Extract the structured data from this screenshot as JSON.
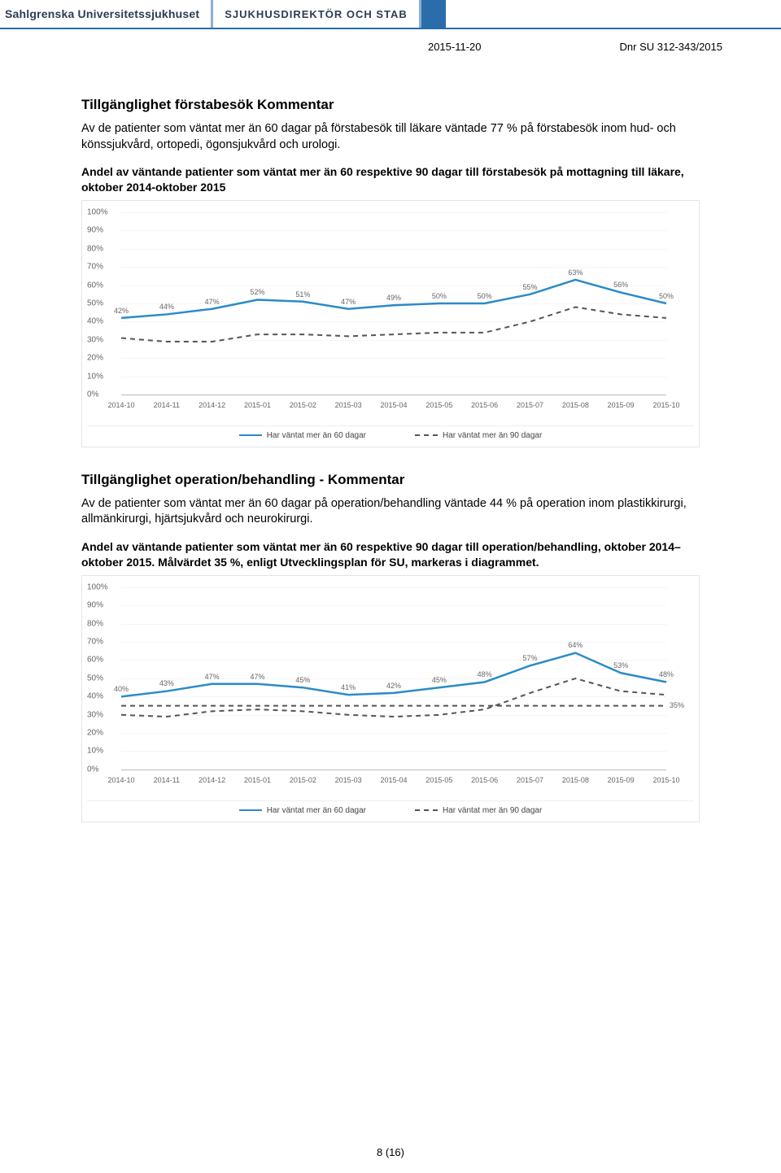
{
  "header": {
    "brand_left": "Sahlgrenska Universitetssjukhuset",
    "brand_mid": "SJUKHUSDIREKTÖR OCH STAB",
    "date": "2015-11-20",
    "dnr": "Dnr SU 312-343/2015"
  },
  "section1": {
    "title": "Tillgänglighet förstabesök Kommentar",
    "body": "Av de patienter som väntat mer än 60 dagar på förstabesök till läkare väntade 77 % på förstabesök inom hud- och könssjukvård, ortopedi, ögonsjukvård och urologi.",
    "caption": "Andel av väntande patienter som väntat mer än 60 respektive 90 dagar till förstabesök på mottagning till läkare, oktober 2014-oktober 2015"
  },
  "section2": {
    "title": "Tillgänglighet operation/behandling - Kommentar",
    "body": "Av de patienter som väntat mer än 60 dagar på operation/behandling väntade 44 % på operation inom plastikkirurgi, allmänkirurgi, hjärtsjukvård och neurokirurgi.",
    "caption": "Andel av väntande patienter som väntat mer än 60 respektive 90 dagar till operation/behandling, oktober 2014–oktober 2015. Målvärdet 35 %, enligt Utvecklingsplan för SU, markeras i diagrammet."
  },
  "chart1": {
    "type": "line",
    "categories": [
      "2014-10",
      "2014-11",
      "2014-12",
      "2015-01",
      "2015-02",
      "2015-03",
      "2015-04",
      "2015-05",
      "2015-06",
      "2015-07",
      "2015-08",
      "2015-09",
      "2015-10"
    ],
    "series60": {
      "label": "Har väntat mer än 60 dagar",
      "values": [
        42,
        44,
        47,
        52,
        51,
        47,
        49,
        50,
        50,
        55,
        63,
        56,
        50
      ],
      "color": "#2b8bc7"
    },
    "series90": {
      "label": "Har väntat mer än 90 dagar",
      "values": [
        31,
        29,
        29,
        33,
        33,
        32,
        33,
        34,
        34,
        40,
        48,
        44,
        42
      ],
      "color": "#555555"
    },
    "ylim": [
      0,
      100
    ],
    "ytick_step": 10,
    "background_color": "#ffffff",
    "grid_color": "#f5f5f5",
    "show_value_labels_on": "series60",
    "label_fontsize": 9
  },
  "chart2": {
    "type": "line",
    "categories": [
      "2014-10",
      "2014-11",
      "2014-12",
      "2015-01",
      "2015-02",
      "2015-03",
      "2015-04",
      "2015-05",
      "2015-06",
      "2015-07",
      "2015-08",
      "2015-09",
      "2015-10"
    ],
    "series60": {
      "label": "Har väntat mer än 60 dagar",
      "values": [
        40,
        43,
        47,
        47,
        45,
        41,
        42,
        45,
        48,
        57,
        64,
        53,
        48
      ],
      "color": "#2b8bc7"
    },
    "series90": {
      "label": "Har väntat mer än 90 dagar",
      "values": [
        30,
        29,
        32,
        33,
        32,
        30,
        29,
        30,
        33,
        42,
        50,
        43,
        41
      ],
      "color": "#555555"
    },
    "target": {
      "label": "35%",
      "value": 35,
      "color": "#555555"
    },
    "ylim": [
      0,
      100
    ],
    "ytick_step": 10,
    "background_color": "#ffffff",
    "grid_color": "#f5f5f5",
    "show_value_labels_on": "series60",
    "end_label_on": "target",
    "label_fontsize": 9
  },
  "legend": {
    "item1": "Har väntat mer än 60 dagar",
    "item2": "Har väntat mer än 90 dagar"
  },
  "pagenum": "8 (16)"
}
